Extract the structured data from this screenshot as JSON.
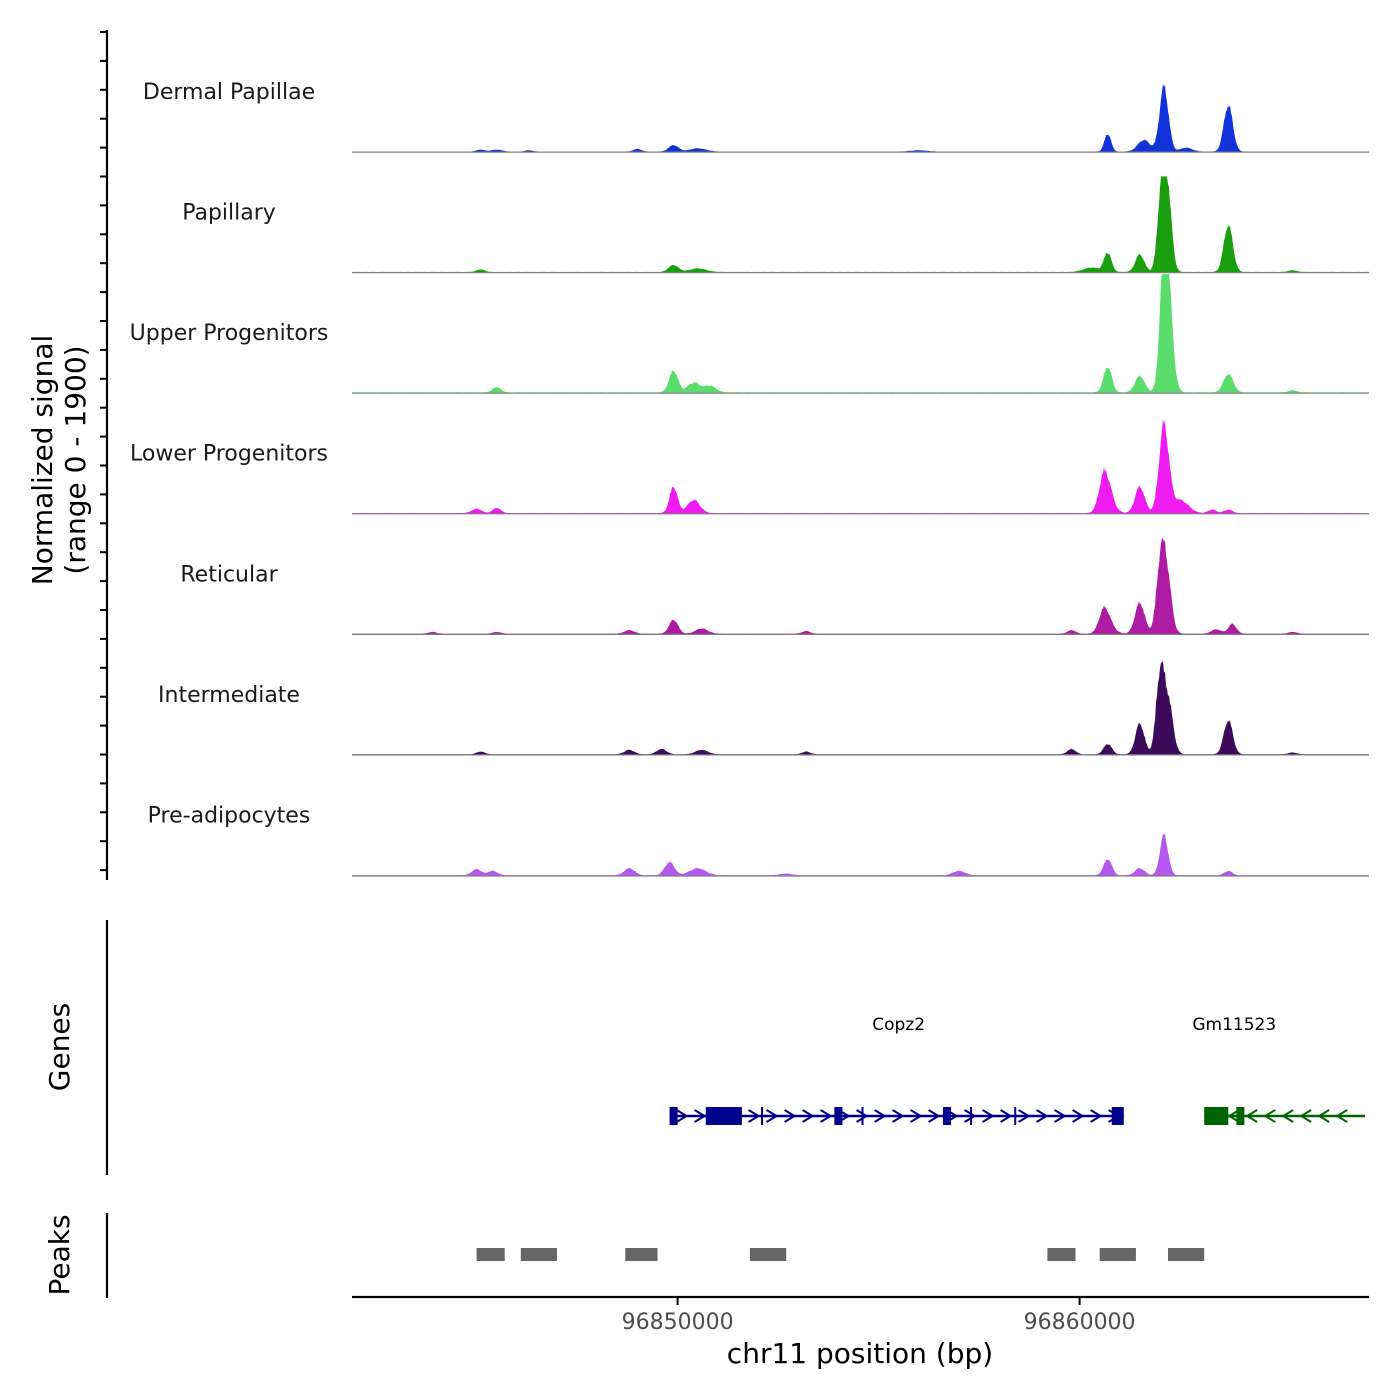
{
  "chart_data": {
    "type": "area",
    "title": "",
    "xlabel": "chr11 position (bp)",
    "ylabel_line1": "Normalized signal",
    "ylabel_line2": "(range 0 - 1900)",
    "ylim": [
      0,
      1900
    ],
    "xlim": [
      96841900,
      96867200
    ],
    "x_ticks": [
      {
        "value": 96850000,
        "label": "96850000"
      },
      {
        "value": 96860000,
        "label": "96860000"
      }
    ],
    "series": [
      {
        "name": "Dermal Papillae",
        "color": "#1233d9",
        "scale": 0.62,
        "peaks": [
          [
            96845100,
            0.03,
            100
          ],
          [
            96845500,
            0.03,
            130
          ],
          [
            96846300,
            0.02,
            90
          ],
          [
            96849000,
            0.04,
            100
          ],
          [
            96849900,
            0.1,
            120
          ],
          [
            96850500,
            0.05,
            200
          ],
          [
            96856000,
            0.02,
            200
          ],
          [
            96860700,
            0.28,
            80
          ],
          [
            96861600,
            0.18,
            150
          ],
          [
            96862100,
            1.0,
            110
          ],
          [
            96862650,
            0.06,
            150
          ],
          [
            96863700,
            0.72,
            110
          ]
        ]
      },
      {
        "name": "Papillary",
        "color": "#1a9e0d",
        "scale": 0.84,
        "peaks": [
          [
            96845100,
            0.03,
            100
          ],
          [
            96849900,
            0.08,
            120
          ],
          [
            96850500,
            0.04,
            200
          ],
          [
            96860300,
            0.05,
            200
          ],
          [
            96860700,
            0.22,
            90
          ],
          [
            96861500,
            0.2,
            110
          ],
          [
            96862050,
            1.0,
            100
          ],
          [
            96862200,
            0.75,
            100
          ],
          [
            96863700,
            0.54,
            110
          ],
          [
            96865300,
            0.02,
            100
          ]
        ]
      },
      {
        "name": "Upper Progenitors",
        "color": "#5bdd6d",
        "scale": 1.04,
        "peaks": [
          [
            96845500,
            0.05,
            100
          ],
          [
            96849900,
            0.2,
            110
          ],
          [
            96850400,
            0.09,
            150
          ],
          [
            96850800,
            0.06,
            150
          ],
          [
            96860700,
            0.24,
            100
          ],
          [
            96861500,
            0.15,
            120
          ],
          [
            96862100,
            1.0,
            100
          ],
          [
            96862200,
            0.75,
            120
          ],
          [
            96863700,
            0.17,
            120
          ],
          [
            96865300,
            0.02,
            100
          ]
        ]
      },
      {
        "name": "Lower Progenitors",
        "color": "#ee1cf0",
        "scale": 0.84,
        "peaks": [
          [
            96845000,
            0.05,
            120
          ],
          [
            96845500,
            0.06,
            100
          ],
          [
            96849900,
            0.3,
            100
          ],
          [
            96850400,
            0.15,
            150
          ],
          [
            96860600,
            0.3,
            120
          ],
          [
            96860700,
            0.22,
            150
          ],
          [
            96861500,
            0.3,
            120
          ],
          [
            96862100,
            1.0,
            120
          ],
          [
            96862500,
            0.15,
            200
          ],
          [
            96863300,
            0.04,
            100
          ],
          [
            96863700,
            0.04,
            100
          ]
        ]
      },
      {
        "name": "Reticular",
        "color": "#ae1ca4",
        "scale": 0.84,
        "peaks": [
          [
            96843900,
            0.02,
            100
          ],
          [
            96845500,
            0.02,
            100
          ],
          [
            96848800,
            0.04,
            120
          ],
          [
            96849900,
            0.16,
            110
          ],
          [
            96850600,
            0.06,
            150
          ],
          [
            96853200,
            0.03,
            100
          ],
          [
            96859800,
            0.04,
            100
          ],
          [
            96860600,
            0.2,
            120
          ],
          [
            96860700,
            0.12,
            150
          ],
          [
            96861500,
            0.35,
            120
          ],
          [
            96862000,
            0.6,
            100
          ],
          [
            96862150,
            0.75,
            120
          ],
          [
            96863400,
            0.05,
            120
          ],
          [
            96863800,
            0.11,
            100
          ],
          [
            96865300,
            0.02,
            100
          ]
        ]
      },
      {
        "name": "Intermediate",
        "color": "#3c0b5c",
        "scale": 0.84,
        "peaks": [
          [
            96845100,
            0.03,
            100
          ],
          [
            96848800,
            0.05,
            120
          ],
          [
            96849600,
            0.06,
            120
          ],
          [
            96850600,
            0.05,
            150
          ],
          [
            96853200,
            0.03,
            100
          ],
          [
            96859800,
            0.06,
            100
          ],
          [
            96860700,
            0.12,
            100
          ],
          [
            96861500,
            0.35,
            110
          ],
          [
            96862000,
            0.85,
            100
          ],
          [
            96862200,
            0.6,
            120
          ],
          [
            96863700,
            0.39,
            110
          ],
          [
            96865300,
            0.02,
            100
          ]
        ]
      },
      {
        "name": "Pre-adipocytes",
        "color": "#b457ee",
        "scale": 0.84,
        "peaks": [
          [
            96845000,
            0.07,
            120
          ],
          [
            96845400,
            0.05,
            120
          ],
          [
            96848800,
            0.08,
            130
          ],
          [
            96849800,
            0.15,
            120
          ],
          [
            96850500,
            0.08,
            200
          ],
          [
            96852700,
            0.02,
            150
          ],
          [
            96857000,
            0.05,
            150
          ],
          [
            96860700,
            0.19,
            100
          ],
          [
            96861500,
            0.08,
            120
          ],
          [
            96862100,
            0.46,
            100
          ],
          [
            96863700,
            0.05,
            100
          ]
        ]
      }
    ],
    "genes": [
      {
        "name": "Copz2",
        "strand": "+",
        "color": "#00008b",
        "start": 96849800,
        "end": 96861100,
        "label_x": 96855500,
        "exons": [
          [
            96849800,
            96850000
          ],
          [
            96850700,
            96851600
          ],
          [
            96853900,
            96854100
          ],
          [
            96856600,
            96856800
          ],
          [
            96860800,
            96861100
          ]
        ],
        "introns": [
          96852100,
          96854600,
          96857300,
          96858400
        ]
      },
      {
        "name": "Gm11523",
        "strand": "-",
        "color": "#006400",
        "start": 96863100,
        "end": 96867100,
        "label_x": 96863850,
        "exons": [
          [
            96863100,
            96863700
          ],
          [
            96863900,
            96864100
          ]
        ],
        "introns": []
      }
    ],
    "peaks": [
      [
        96845000,
        96845700
      ],
      [
        96846100,
        96847000
      ],
      [
        96848700,
        96849500
      ],
      [
        96851800,
        96852700
      ],
      [
        96859200,
        96859900
      ],
      [
        96860500,
        96861400
      ],
      [
        96862200,
        96863100
      ]
    ]
  }
}
